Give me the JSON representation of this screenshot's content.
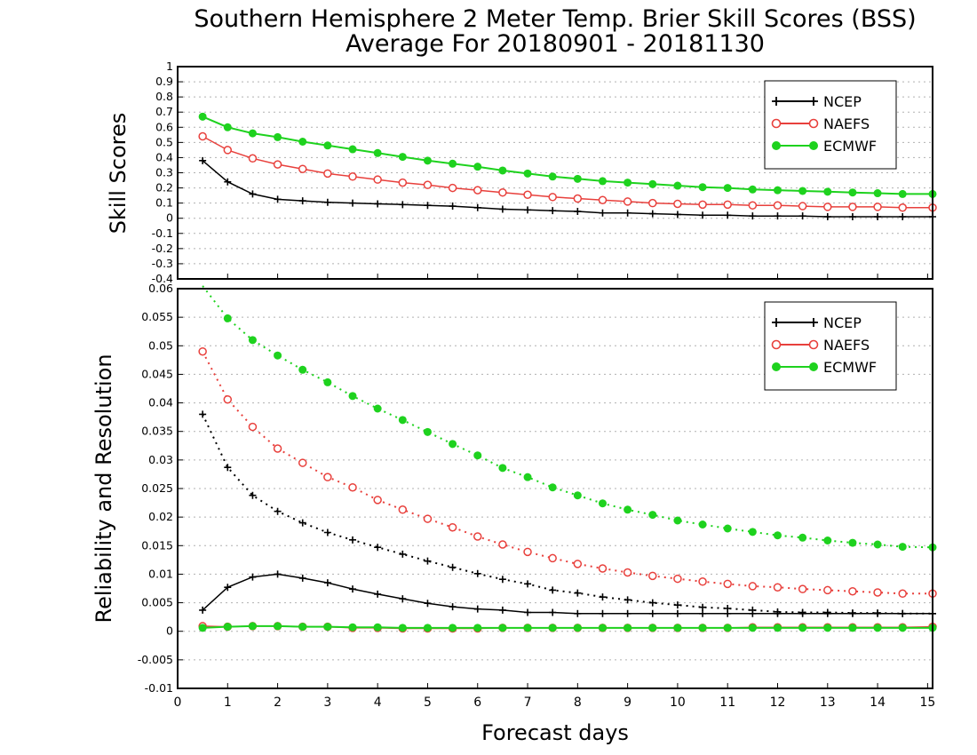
{
  "title_line1": "Southern Hemisphere 2 Meter Temp. Brier Skill Scores (BSS)",
  "title_line2": "Average For 20180901 - 20181130",
  "xlabel": "Forecast days",
  "colors": {
    "NCEP": "#000000",
    "NAEFS": "#e8403c",
    "ECMWF": "#1ed21e"
  },
  "chart_data": [
    {
      "type": "line",
      "ylabel": "Skill Scores",
      "xlim": [
        0,
        15.1
      ],
      "ylim": [
        -0.4,
        1
      ],
      "yticks": [
        -0.4,
        -0.3,
        -0.2,
        -0.1,
        0,
        0.1,
        0.2,
        0.3,
        0.4,
        0.5,
        0.6,
        0.7,
        0.8,
        0.9,
        1
      ],
      "ytick_labels": [
        "-0.4",
        "-0.3",
        "-0.2",
        "-0.1",
        "0",
        "0.1",
        "0.2",
        "0.3",
        "0.4",
        "0.5",
        "0.6",
        "0.7",
        "0.8",
        "0.9",
        "1"
      ],
      "grid": true,
      "legend_position": "top-right",
      "legend": [
        "NCEP",
        "NAEFS",
        "ECMWF"
      ],
      "series": [
        {
          "name": "NCEP",
          "style": "solid",
          "marker": "plus",
          "x": [
            0.5,
            1,
            1.5,
            2,
            2.5,
            3,
            3.5,
            4,
            4.5,
            5,
            5.5,
            6,
            6.5,
            7,
            7.5,
            8,
            8.5,
            9,
            9.5,
            10,
            10.5,
            11,
            11.5,
            12,
            12.5,
            13,
            13.5,
            14,
            14.5,
            15.1
          ],
          "values": [
            0.38,
            0.24,
            0.16,
            0.125,
            0.115,
            0.105,
            0.1,
            0.095,
            0.09,
            0.085,
            0.08,
            0.07,
            0.06,
            0.055,
            0.05,
            0.045,
            0.035,
            0.035,
            0.03,
            0.025,
            0.02,
            0.02,
            0.015,
            0.015,
            0.015,
            0.01,
            0.01,
            0.01,
            0.01,
            0.01
          ]
        },
        {
          "name": "NAEFS",
          "style": "solid",
          "marker": "circle",
          "x": [
            0.5,
            1,
            1.5,
            2,
            2.5,
            3,
            3.5,
            4,
            4.5,
            5,
            5.5,
            6,
            6.5,
            7,
            7.5,
            8,
            8.5,
            9,
            9.5,
            10,
            10.5,
            11,
            11.5,
            12,
            12.5,
            13,
            13.5,
            14,
            14.5,
            15.1
          ],
          "values": [
            0.54,
            0.45,
            0.395,
            0.355,
            0.325,
            0.295,
            0.275,
            0.255,
            0.235,
            0.22,
            0.2,
            0.185,
            0.17,
            0.155,
            0.14,
            0.13,
            0.12,
            0.11,
            0.1,
            0.095,
            0.09,
            0.09,
            0.085,
            0.085,
            0.08,
            0.075,
            0.075,
            0.075,
            0.07,
            0.07
          ]
        },
        {
          "name": "ECMWF",
          "style": "solid",
          "marker": "dot",
          "x": [
            0.5,
            1,
            1.5,
            2,
            2.5,
            3,
            3.5,
            4,
            4.5,
            5,
            5.5,
            6,
            6.5,
            7,
            7.5,
            8,
            8.5,
            9,
            9.5,
            10,
            10.5,
            11,
            11.5,
            12,
            12.5,
            13,
            13.5,
            14,
            14.5,
            15.1
          ],
          "values": [
            0.67,
            0.6,
            0.56,
            0.535,
            0.505,
            0.48,
            0.455,
            0.43,
            0.405,
            0.38,
            0.36,
            0.34,
            0.315,
            0.295,
            0.275,
            0.26,
            0.245,
            0.235,
            0.225,
            0.215,
            0.205,
            0.2,
            0.19,
            0.185,
            0.18,
            0.175,
            0.17,
            0.165,
            0.16,
            0.16
          ]
        }
      ]
    },
    {
      "type": "line",
      "ylabel": "Reliability and Resolution",
      "xlim": [
        0,
        15.1
      ],
      "ylim": [
        -0.01,
        0.06
      ],
      "yticks": [
        -0.01,
        -0.005,
        0,
        0.005,
        0.01,
        0.015,
        0.02,
        0.025,
        0.03,
        0.035,
        0.04,
        0.045,
        0.05,
        0.055,
        0.06
      ],
      "ytick_labels": [
        "-0.01",
        "-0.005",
        "0",
        "0.005",
        "0.01",
        "0.015",
        "0.02",
        "0.025",
        "0.03",
        "0.035",
        "0.04",
        "0.045",
        "0.05",
        "0.055",
        "0.06"
      ],
      "xticks": [
        0,
        1,
        2,
        3,
        4,
        5,
        6,
        7,
        8,
        9,
        10,
        11,
        12,
        13,
        14,
        15
      ],
      "xtick_labels": [
        "0",
        "1",
        "2",
        "3",
        "4",
        "5",
        "6",
        "7",
        "8",
        "9",
        "10",
        "11",
        "12",
        "13",
        "14",
        "15"
      ],
      "grid": true,
      "legend_position": "top-right",
      "legend": [
        "NCEP",
        "NAEFS",
        "ECMWF"
      ],
      "series": [
        {
          "name": "NCEP",
          "style": "dotted",
          "marker": "plus",
          "x": [
            0.5,
            1,
            1.5,
            2,
            2.5,
            3,
            3.5,
            4,
            4.5,
            5,
            5.5,
            6,
            6.5,
            7,
            7.5,
            8,
            8.5,
            9,
            9.5,
            10,
            10.5,
            11,
            11.5,
            12,
            12.5,
            13,
            13.5,
            14,
            14.5,
            15.1
          ],
          "values": [
            0.038,
            0.0287,
            0.0238,
            0.021,
            0.019,
            0.0173,
            0.016,
            0.0147,
            0.0135,
            0.0123,
            0.0112,
            0.0101,
            0.0091,
            0.0083,
            0.0072,
            0.0067,
            0.006,
            0.0055,
            0.005,
            0.0046,
            0.0042,
            0.004,
            0.0037,
            0.0034,
            0.0033,
            0.0033,
            0.0032,
            0.0032,
            0.0031,
            0.0031
          ]
        },
        {
          "name": "NAEFS",
          "style": "dotted",
          "marker": "circle",
          "x": [
            0.5,
            1,
            1.5,
            2,
            2.5,
            3,
            3.5,
            4,
            4.5,
            5,
            5.5,
            6,
            6.5,
            7,
            7.5,
            8,
            8.5,
            9,
            9.5,
            10,
            10.5,
            11,
            11.5,
            12,
            12.5,
            13,
            13.5,
            14,
            14.5,
            15.1
          ],
          "values": [
            0.049,
            0.0406,
            0.0358,
            0.032,
            0.0295,
            0.027,
            0.0252,
            0.023,
            0.0213,
            0.0197,
            0.0182,
            0.0166,
            0.0152,
            0.0139,
            0.0128,
            0.0118,
            0.011,
            0.0103,
            0.0097,
            0.0092,
            0.0087,
            0.0083,
            0.0079,
            0.0077,
            0.0074,
            0.0072,
            0.007,
            0.0068,
            0.0066,
            0.0066
          ]
        },
        {
          "name": "ECMWF",
          "style": "dotted",
          "marker": "dot",
          "x": [
            0.5,
            1,
            1.5,
            2,
            2.5,
            3,
            3.5,
            4,
            4.5,
            5,
            5.5,
            6,
            6.5,
            7,
            7.5,
            8,
            8.5,
            9,
            9.5,
            10,
            10.5,
            11,
            11.5,
            12,
            12.5,
            13,
            13.5,
            14,
            14.5,
            15.1
          ],
          "values": [
            0.0605,
            0.0548,
            0.051,
            0.0483,
            0.0458,
            0.0436,
            0.0412,
            0.039,
            0.037,
            0.0349,
            0.0328,
            0.0308,
            0.0286,
            0.027,
            0.0252,
            0.0238,
            0.0224,
            0.0213,
            0.0204,
            0.0194,
            0.0187,
            0.018,
            0.0174,
            0.0168,
            0.0164,
            0.0159,
            0.0155,
            0.0152,
            0.0148,
            0.0147
          ]
        },
        {
          "name": "NCEP",
          "style": "solid",
          "marker": "plus",
          "x": [
            0.5,
            1,
            1.5,
            2,
            2.5,
            3,
            3.5,
            4,
            4.5,
            5,
            5.5,
            6,
            6.5,
            7,
            7.5,
            8,
            8.5,
            9,
            9.5,
            10,
            10.5,
            11,
            11.5,
            12,
            12.5,
            13,
            13.5,
            14,
            14.5,
            15.1
          ],
          "values": [
            0.0037,
            0.0077,
            0.0095,
            0.01,
            0.0093,
            0.0085,
            0.0074,
            0.0065,
            0.0057,
            0.0049,
            0.0043,
            0.0039,
            0.0037,
            0.0033,
            0.0033,
            0.0031,
            0.0031,
            0.0031,
            0.0031,
            0.0031,
            0.0031,
            0.0031,
            0.0031,
            0.0031,
            0.0031,
            0.0031,
            0.0031,
            0.0031,
            0.0031,
            0.0031
          ]
        },
        {
          "name": "NAEFS",
          "style": "solid",
          "marker": "circle",
          "x": [
            0.5,
            1,
            1.5,
            2,
            2.5,
            3,
            3.5,
            4,
            4.5,
            5,
            5.5,
            6,
            6.5,
            7,
            7.5,
            8,
            8.5,
            9,
            9.5,
            10,
            10.5,
            11,
            11.5,
            12,
            12.5,
            13,
            13.5,
            14,
            14.5,
            15.1
          ],
          "values": [
            0.0009,
            0.0008,
            0.0009,
            0.0009,
            0.0008,
            0.0008,
            0.0006,
            0.0006,
            0.0005,
            0.0005,
            0.0005,
            0.0005,
            0.0006,
            0.0006,
            0.0006,
            0.0006,
            0.0006,
            0.0006,
            0.0006,
            0.0006,
            0.0006,
            0.0006,
            0.0007,
            0.0007,
            0.0007,
            0.0007,
            0.0007,
            0.0007,
            0.0007,
            0.0008
          ]
        },
        {
          "name": "ECMWF",
          "style": "solid",
          "marker": "dot",
          "x": [
            0.5,
            1,
            1.5,
            2,
            2.5,
            3,
            3.5,
            4,
            4.5,
            5,
            5.5,
            6,
            6.5,
            7,
            7.5,
            8,
            8.5,
            9,
            9.5,
            10,
            10.5,
            11,
            11.5,
            12,
            12.5,
            13,
            13.5,
            14,
            14.5,
            15.1
          ],
          "values": [
            0.0006,
            0.0008,
            0.0009,
            0.0009,
            0.0008,
            0.0008,
            0.0007,
            0.0007,
            0.0006,
            0.0006,
            0.0006,
            0.0006,
            0.0006,
            0.0006,
            0.0006,
            0.0006,
            0.0006,
            0.0006,
            0.0006,
            0.0006,
            0.0006,
            0.0006,
            0.0006,
            0.0006,
            0.0006,
            0.0006,
            0.0006,
            0.0006,
            0.0006,
            0.0006
          ]
        }
      ]
    }
  ]
}
